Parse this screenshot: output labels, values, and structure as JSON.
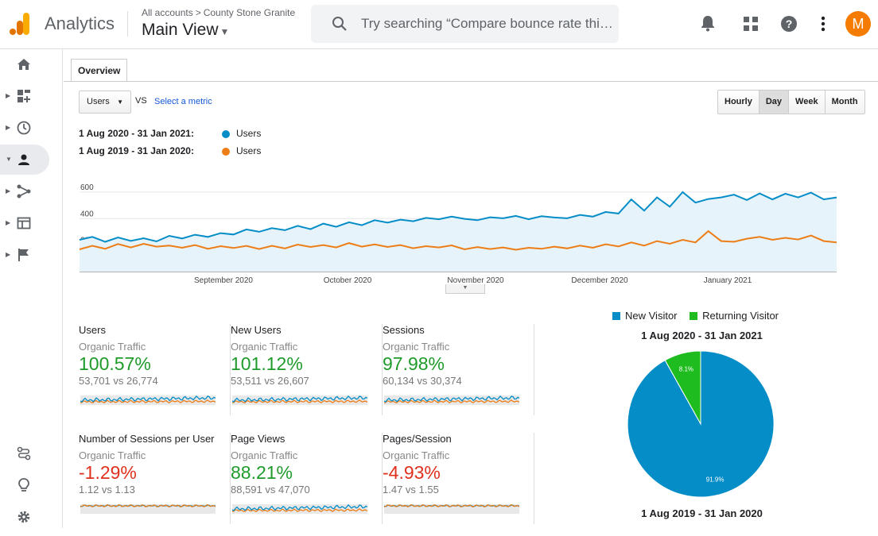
{
  "header": {
    "app_name": "Analytics",
    "crumb_root": "All accounts",
    "crumb_sep": ">",
    "crumb_account": "County Stone Granite",
    "view_name": "Main View",
    "search_placeholder": "Try searching “Compare bounce rate thi…",
    "avatar_letter": "M"
  },
  "sidebar": {
    "items": [
      "home-icon",
      "customization-icon",
      "realtime-icon",
      "audience-icon",
      "acquisition-icon",
      "behavior-icon",
      "conversions-icon"
    ],
    "bottom": [
      "attribution-icon",
      "discover-icon",
      "admin-icon"
    ]
  },
  "tabs": {
    "overview": "Overview"
  },
  "controls": {
    "metric": "Users",
    "vs": "VS",
    "select_metric": "Select a metric",
    "periods": [
      "Hourly",
      "Day",
      "Week",
      "Month"
    ],
    "selected_period": "Day"
  },
  "legend": {
    "current_range": "1 Aug 2020 - 31 Jan 2021:",
    "current_label": "Users",
    "current_color": "#058dc7",
    "previous_range": "1 Aug 2019 - 31 Jan 2020:",
    "previous_label": "Users",
    "previous_color": "#ed7e17"
  },
  "chart_data": {
    "type": "line",
    "ylim": [
      0,
      600
    ],
    "yticks": [
      "600",
      "400",
      "200"
    ],
    "xticks": [
      "September 2020",
      "October 2020",
      "November 2020",
      "December 2020",
      "January 2021"
    ],
    "series": [
      {
        "name": "1 Aug 2020 - 31 Jan 2021",
        "color": "#058dc7",
        "values": [
          240,
          262,
          225,
          258,
          232,
          252,
          228,
          270,
          250,
          278,
          262,
          290,
          280,
          318,
          300,
          328,
          312,
          345,
          320,
          362,
          338,
          372,
          350,
          388,
          370,
          392,
          380,
          405,
          395,
          415,
          398,
          388,
          410,
          402,
          420,
          395,
          418,
          408,
          402,
          428,
          415,
          450,
          438,
          545,
          460,
          560,
          490,
          600,
          520,
          548,
          560,
          580,
          540,
          590,
          545,
          588,
          560,
          596,
          545,
          560
        ]
      },
      {
        "name": "1 Aug 2019 - 31 Jan 2020",
        "color": "#ed7e17",
        "values": [
          168,
          195,
          172,
          208,
          182,
          210,
          188,
          196,
          180,
          200,
          172,
          192,
          178,
          194,
          170,
          195,
          175,
          204,
          186,
          200,
          182,
          215,
          188,
          205,
          186,
          200,
          176,
          192,
          182,
          198,
          168,
          185,
          170,
          182,
          165,
          180,
          172,
          188,
          175,
          196,
          180,
          206,
          190,
          220,
          196,
          230,
          210,
          240,
          220,
          305,
          230,
          225,
          248,
          262,
          240,
          255,
          242,
          272,
          230,
          220
        ]
      }
    ]
  },
  "cards": [
    {
      "title": "Users",
      "segment": "Organic Traffic",
      "pct": "100.57%",
      "dir": "pos",
      "cmp": "53,701 vs 26,774",
      "trend_ratio": 2.0
    },
    {
      "title": "New Users",
      "segment": "Organic Traffic",
      "pct": "101.12%",
      "dir": "pos",
      "cmp": "53,511 vs 26,607",
      "trend_ratio": 2.0
    },
    {
      "title": "Sessions",
      "segment": "Organic Traffic",
      "pct": "97.98%",
      "dir": "pos",
      "cmp": "60,134 vs 30,374",
      "trend_ratio": 1.98
    },
    {
      "title": "Number of Sessions per User",
      "segment": "Organic Traffic",
      "pct": "-1.29%",
      "dir": "neg",
      "cmp": "1.12 vs 1.13",
      "trend_ratio": 0.99
    },
    {
      "title": "Page Views",
      "segment": "Organic Traffic",
      "pct": "88.21%",
      "dir": "pos",
      "cmp": "88,591 vs 47,070",
      "trend_ratio": 1.88
    },
    {
      "title": "Pages/Session",
      "segment": "Organic Traffic",
      "pct": "-4.93%",
      "dir": "neg",
      "cmp": "1.47 vs 1.55",
      "trend_ratio": 0.95
    }
  ],
  "pie": {
    "legend": [
      {
        "label": "New Visitor",
        "color": "#058dc7"
      },
      {
        "label": "Returning Visitor",
        "color": "#1fbc1f"
      }
    ],
    "title_current": "1 Aug 2020 - 31 Jan 2021",
    "title_previous": "1 Aug 2019 - 31 Jan 2020",
    "slices": [
      {
        "label": "91.9%",
        "value": 91.9,
        "color": "#058dc7"
      },
      {
        "label": "8.1%",
        "value": 8.1,
        "color": "#1fbc1f"
      }
    ]
  }
}
